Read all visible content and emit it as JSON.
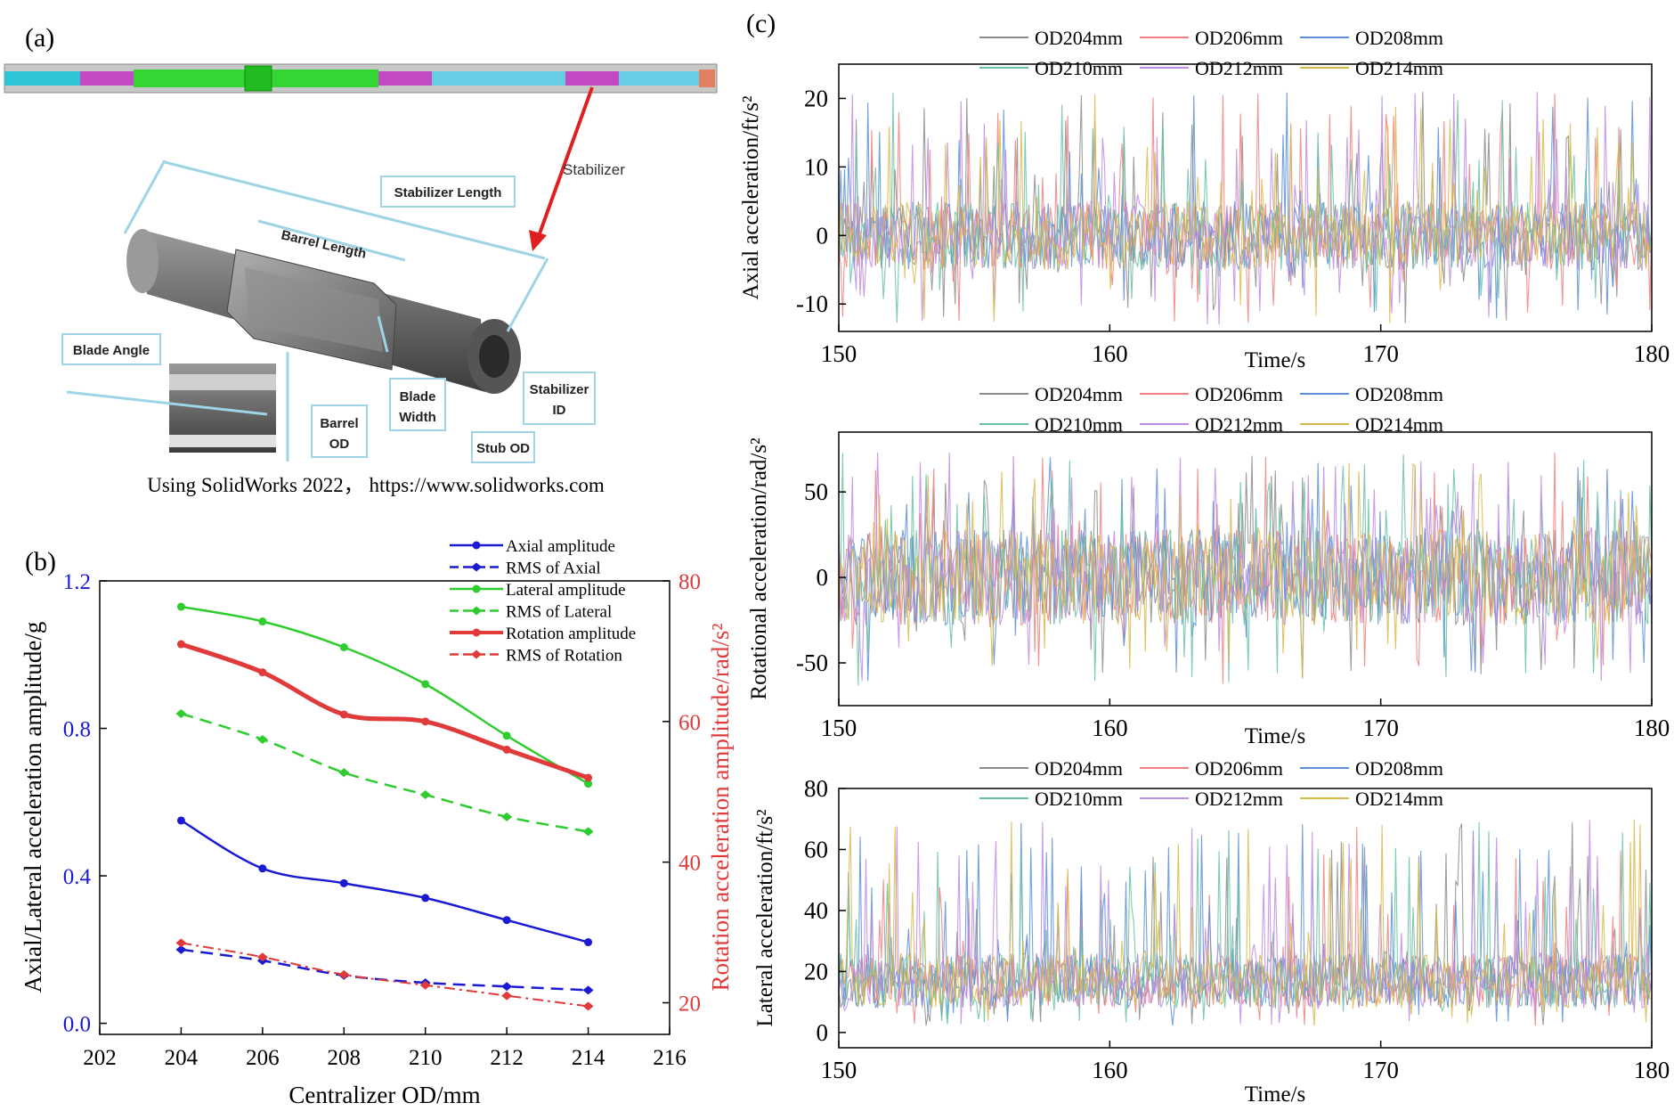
{
  "panel_a": {
    "label": "(a)",
    "stabilizer_caption": "Stabilizer",
    "callouts": {
      "stabilizer_length": "Stabilizer Length",
      "barrel_length": "Barrel Length",
      "blade_angle": "Blade Angle",
      "blade_width_1": "Blade",
      "blade_width_2": "Width",
      "barrel_od_1": "Barrel",
      "barrel_od_2": "OD",
      "stub_od": "Stub OD",
      "stabilizer_id_1": "Stabilizer",
      "stabilizer_id_2": "ID"
    },
    "credit": "Using SolidWorks 2022， https://www.solidworks.com"
  },
  "colors": {
    "blue": "#1a1ad4",
    "green": "#2ecc2e",
    "red": "#e03a3a",
    "od204": "#8c8c8c",
    "od206": "#f08080",
    "od208": "#5b8fd9",
    "od210": "#66c2a5",
    "od212": "#c08ae8",
    "od214": "#d9b84a"
  },
  "chart_data": [
    {
      "id": "b",
      "panel_label": "(b)",
      "type": "line",
      "title": "",
      "xlabel": "Centralizer OD/mm",
      "ylabel": "Axial/Lateral acceleration amplitude/g",
      "y2label": "Rotation acceleration amplitude/rad/s²",
      "x": [
        204,
        206,
        208,
        210,
        212,
        214
      ],
      "xlim": [
        202,
        216
      ],
      "xticks": [
        "202",
        "204",
        "206",
        "208",
        "210",
        "212",
        "214",
        "216"
      ],
      "ylim": [
        -0.03,
        1.2
      ],
      "yticks": [
        "0.0",
        "0.4",
        "0.8",
        "1.2"
      ],
      "y2lim": [
        15.5,
        80
      ],
      "y2ticks": [
        "20",
        "40",
        "60",
        "80"
      ],
      "legend_position": "top-right",
      "series": [
        {
          "name": "Axial amplitude",
          "axis": "left",
          "style": "solid",
          "values": [
            0.55,
            0.42,
            0.38,
            0.34,
            0.28,
            0.22
          ]
        },
        {
          "name": "RMS of Axial",
          "axis": "left",
          "style": "dashed",
          "values": [
            0.2,
            0.17,
            0.13,
            0.11,
            0.1,
            0.09
          ]
        },
        {
          "name": "Lateral amplitude",
          "axis": "left",
          "style": "solid",
          "values": [
            1.13,
            1.09,
            1.02,
            0.92,
            0.78,
            0.65
          ]
        },
        {
          "name": "RMS of Lateral",
          "axis": "left",
          "style": "dashed",
          "values": [
            0.84,
            0.77,
            0.68,
            0.62,
            0.56,
            0.52
          ]
        },
        {
          "name": "Rotation amplitude",
          "axis": "right",
          "style": "thick",
          "values": [
            71,
            67,
            61,
            60,
            56,
            52
          ]
        },
        {
          "name": "RMS of Rotation",
          "axis": "right",
          "style": "dashdot",
          "values": [
            28.5,
            26.5,
            24,
            22.5,
            21,
            19.5
          ]
        }
      ]
    },
    {
      "id": "c1",
      "panel_label": "(c)",
      "type": "line",
      "xlabel": "Time/s",
      "ylabel": "Axial acceleration/ft/s²",
      "xlim": [
        150,
        180
      ],
      "xticks": [
        "150",
        "160",
        "170",
        "180"
      ],
      "ylim": [
        -14,
        25
      ],
      "yticks": [
        "-10",
        "0",
        "10",
        "20"
      ],
      "ytick_values": [
        -10,
        0,
        10,
        20
      ],
      "signal": {
        "center": 0,
        "spread": 5,
        "spike_high": 21,
        "spike_low": -13,
        "points_per_series": 420
      },
      "legend": [
        "OD204mm",
        "OD206mm",
        "OD208mm",
        "OD210mm",
        "OD212mm",
        "OD214mm"
      ]
    },
    {
      "id": "c2",
      "type": "line",
      "xlabel": "Time/s",
      "ylabel": "Rotational acceleration/rad/s²",
      "xlim": [
        150,
        180
      ],
      "xticks": [
        "150",
        "160",
        "170",
        "180"
      ],
      "ylim": [
        -75,
        85
      ],
      "yticks": [
        "-50",
        "0",
        "50"
      ],
      "ytick_values": [
        -50,
        0,
        50
      ],
      "signal": {
        "center": 0,
        "spread": 28,
        "spike_high": 74,
        "spike_low": -64,
        "points_per_series": 420
      },
      "legend": [
        "OD204mm",
        "OD206mm",
        "OD208mm",
        "OD210mm",
        "OD212mm",
        "OD214mm"
      ]
    },
    {
      "id": "c3",
      "type": "line",
      "xlabel": "Time/s",
      "ylabel": "Lateral acceleration/ft/s²",
      "xlim": [
        150,
        180
      ],
      "xticks": [
        "150",
        "160",
        "170",
        "180"
      ],
      "ylim": [
        -5,
        80
      ],
      "yticks": [
        "0",
        "20",
        "40",
        "60",
        "80"
      ],
      "ytick_values": [
        0,
        20,
        40,
        60,
        80
      ],
      "signal": {
        "center": 17,
        "spread": 9,
        "spike_high": 70,
        "spike_low": 2,
        "points_per_series": 420
      },
      "legend": [
        "OD204mm",
        "OD206mm",
        "OD208mm",
        "OD210mm",
        "OD212mm",
        "OD214mm"
      ]
    }
  ]
}
